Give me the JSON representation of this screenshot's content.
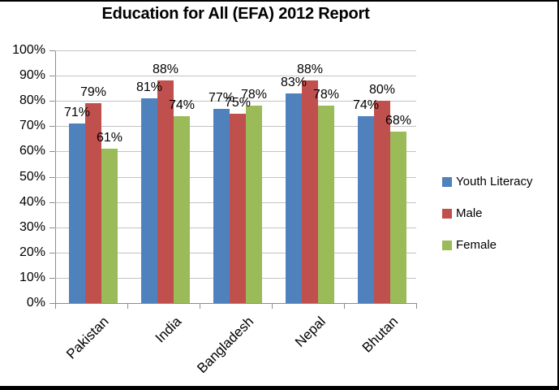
{
  "title": "Education for All (EFA) 2012 Report",
  "chart_data": {
    "type": "bar",
    "title": "Education for All (EFA) 2012 Report",
    "categories": [
      "Pakistan",
      "India",
      "Bangladesh",
      "Nepal",
      "Bhutan"
    ],
    "series": [
      {
        "name": "Youth Literacy",
        "color": "#4F81BD",
        "values": [
          71,
          81,
          77,
          83,
          74
        ]
      },
      {
        "name": "Male",
        "color": "#C0504D",
        "values": [
          79,
          88,
          75,
          88,
          80
        ]
      },
      {
        "name": "Female",
        "color": "#9BBB59",
        "values": [
          61,
          74,
          78,
          78,
          68
        ]
      }
    ],
    "data_labels": "outside-end",
    "data_label_format": "{v}%",
    "y_axis": {
      "min": 0,
      "max": 100,
      "step": 10,
      "tick_labels": [
        "0%",
        "10%",
        "20%",
        "30%",
        "40%",
        "50%",
        "60%",
        "70%",
        "80%",
        "90%",
        "100%"
      ]
    },
    "grid": true,
    "legend_position": "right"
  },
  "colors": {
    "grid": "#C3C3C3",
    "axis": "#8C8C8C",
    "text": "#000000",
    "frame": "#000000",
    "background": "#FFFFFF"
  }
}
